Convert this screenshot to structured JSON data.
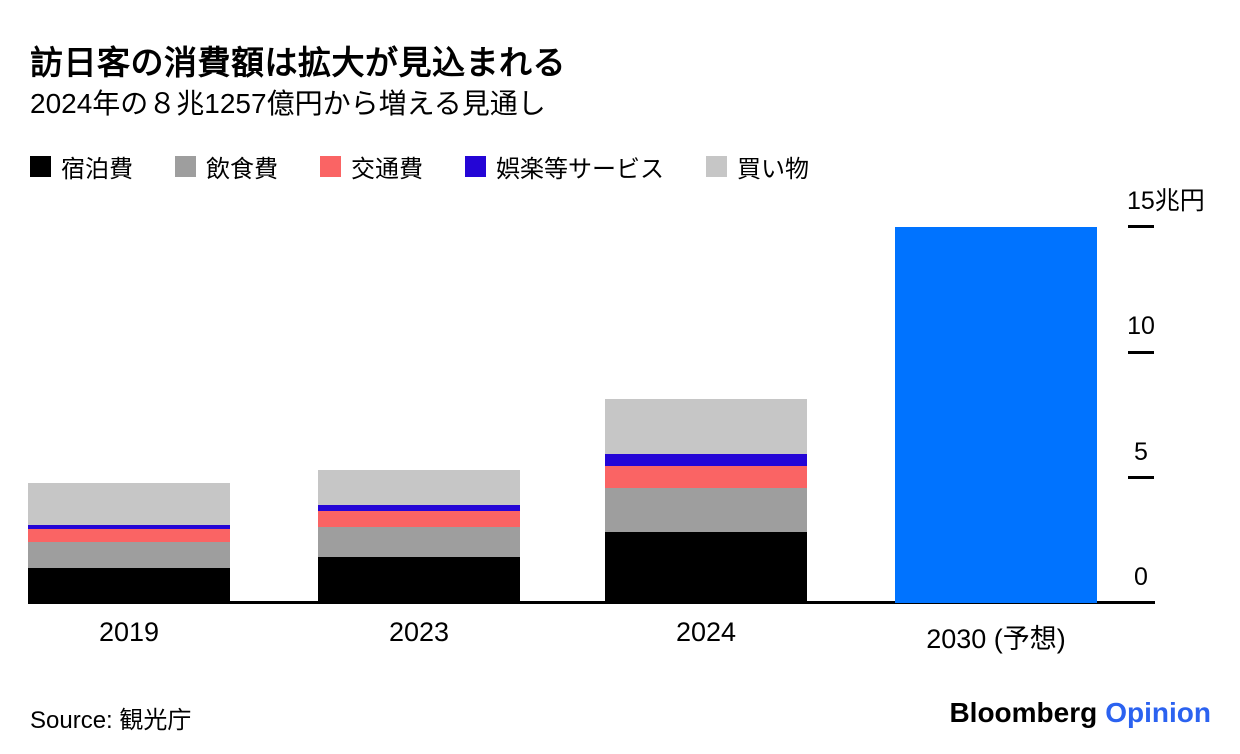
{
  "header": {
    "title": "訪日客の消費額は拡大が見込まれる",
    "subtitle": "2024年の８兆1257億円から増える見通し"
  },
  "footer": {
    "source": "Source: 観光庁",
    "brand": {
      "bloomberg": "Bloomberg",
      "opinion": "Opinion",
      "opinion_color": "#2b62f0"
    }
  },
  "chart_data": {
    "type": "bar",
    "subtype": "stacked",
    "title": "訪日客の消費額は拡大が見込まれる",
    "subtitle": "2024年の８兆1257億円から増える見通し",
    "unit": "兆円",
    "categories": [
      "2019",
      "2023",
      "2024",
      "2030 (予想)"
    ],
    "series": [
      {
        "name": "宿泊費",
        "color": "#000000",
        "values": [
          1.41,
          1.84,
          2.83,
          null
        ]
      },
      {
        "name": "飲食費",
        "color": "#9e9e9e",
        "values": [
          1.04,
          1.19,
          1.74,
          null
        ]
      },
      {
        "name": "交通費",
        "color": "#fa6464",
        "values": [
          0.5,
          0.63,
          0.9,
          null
        ]
      },
      {
        "name": "娯楽等サービス",
        "color": "#2405d6",
        "values": [
          0.17,
          0.24,
          0.46,
          null
        ]
      },
      {
        "name": "買い物",
        "color": "#c6c6c6",
        "values": [
          1.68,
          1.41,
          2.19,
          null
        ]
      }
    ],
    "forecast": {
      "category": "2030 (予想)",
      "total": 15.0,
      "color": "#0073ff"
    },
    "totals_trillion_yen": [
      4.8,
      5.31,
      8.12,
      15.0
    ],
    "yticks": [
      0,
      5,
      10,
      15
    ],
    "ytick_labels": [
      "0",
      "5",
      "10",
      "15兆円"
    ],
    "ylim": [
      0,
      15.2
    ],
    "axis_side": "right",
    "grid": false,
    "legend_position": "top"
  }
}
